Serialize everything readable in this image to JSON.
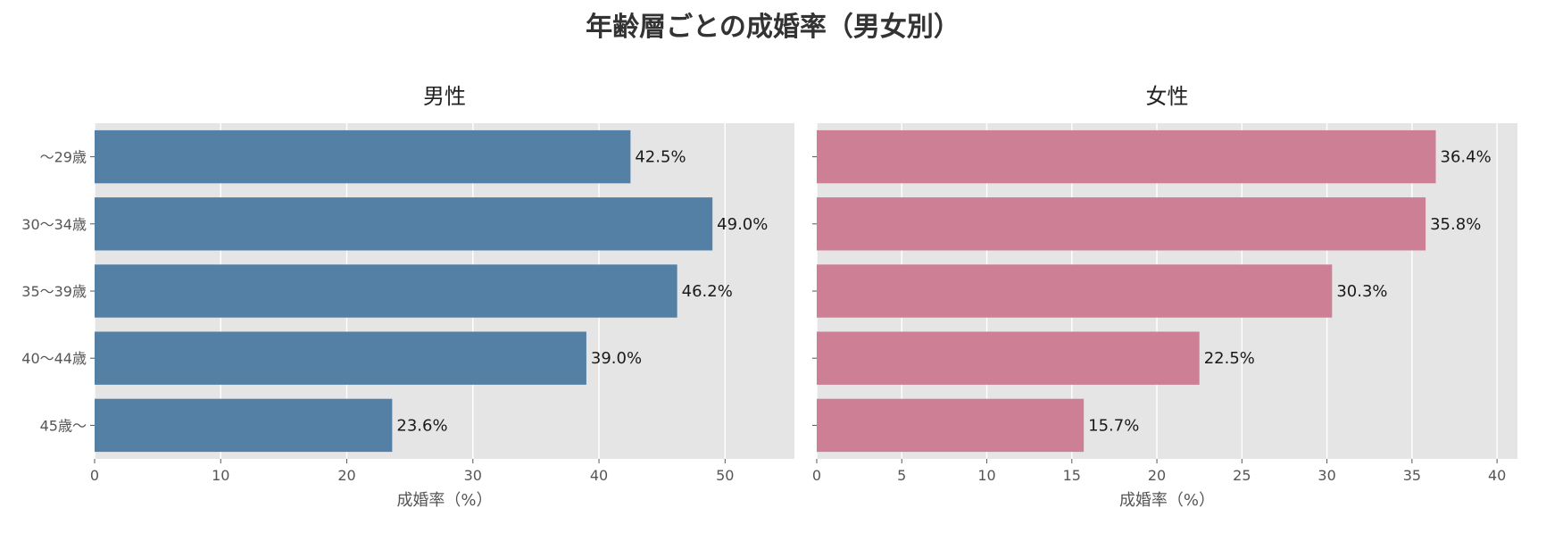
{
  "title": "年齢層ごとの成婚率（男女別）",
  "chart_data": [
    {
      "type": "bar",
      "orientation": "horizontal",
      "title": "男性",
      "categories": [
        "～29歳",
        "30～34歳",
        "35～39歳",
        "40～44歳",
        "45歳～"
      ],
      "values": [
        42.5,
        49.0,
        46.2,
        39.0,
        23.6
      ],
      "value_labels": [
        "42.5%",
        "49.0%",
        "46.2%",
        "39.0%",
        "23.6%"
      ],
      "xlabel": "成婚率（%）",
      "ylabel": "",
      "xlim": [
        0,
        55.5
      ],
      "xticks": [
        0,
        10,
        20,
        30,
        40,
        50
      ],
      "color": "#5580a6",
      "grid": true
    },
    {
      "type": "bar",
      "orientation": "horizontal",
      "title": "女性",
      "categories": [
        "～29歳",
        "30～34歳",
        "35～39歳",
        "40～44歳",
        "45歳～"
      ],
      "values": [
        36.4,
        35.8,
        30.3,
        22.5,
        15.7
      ],
      "value_labels": [
        "36.4%",
        "35.8%",
        "30.3%",
        "22.5%",
        "15.7%"
      ],
      "xlabel": "成婚率（%）",
      "ylabel": "",
      "xlim": [
        0,
        41.2
      ],
      "xticks": [
        0,
        5,
        10,
        15,
        20,
        25,
        30,
        35,
        40
      ],
      "color": "#cc7f95",
      "grid": true
    }
  ]
}
